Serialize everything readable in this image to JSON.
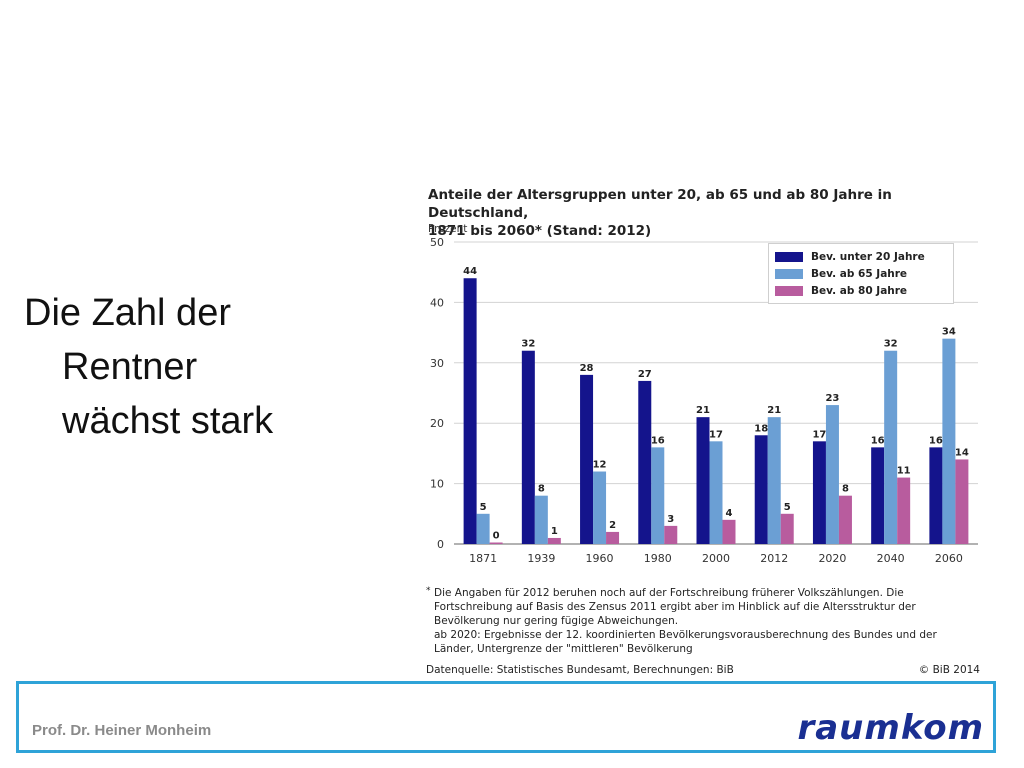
{
  "slide": {
    "line1": "Die Zahl der",
    "line2": "Rentner",
    "line3": "wächst stark"
  },
  "footer": {
    "author": "Prof. Dr. Heiner Monheim",
    "logo": "raumkom"
  },
  "figure": {
    "title_line1": "Anteile der Altersgruppen unter 20, ab 65 und ab 80 Jahre in Deutschland,",
    "title_line2": "1871 bis 2060* (Stand: 2012)",
    "unit_label": "Prozent",
    "footnote_marker": "*",
    "footnote_lines": [
      "Die Angaben für 2012 beruhen noch auf der Fortschreibung früherer Volkszählungen. Die",
      "Fortschreibung auf Basis des Zensus 2011 ergibt aber im Hinblick auf die Altersstruktur der",
      "Bevölkerung nur gering fügige Abweichungen.",
      "ab 2020: Ergebnisse der 12. koordinierten Bevölkerungsvorausberechnung des Bundes und der",
      "Länder, Untergrenze der \"mittleren\" Bevölkerung"
    ],
    "source": "Datenquelle: Statistisches Bundesamt, Berechnungen: BiB",
    "copyright": "© BiB 2014"
  },
  "chart_data": {
    "type": "bar",
    "title": "Anteile der Altersgruppen unter 20, ab 65 und ab 80 Jahre in Deutschland, 1871 bis 2060* (Stand: 2012)",
    "ylabel": "Prozent",
    "categories": [
      "1871",
      "1939",
      "1960",
      "1980",
      "2000",
      "2012",
      "2020",
      "2040",
      "2060"
    ],
    "ylim": [
      0,
      50
    ],
    "yticks": [
      0,
      10,
      20,
      30,
      40,
      50
    ],
    "grid": true,
    "legend_position": "top-right",
    "series": [
      {
        "name": "Bev. unter 20 Jahre",
        "color": "#14148c",
        "values": [
          44,
          32,
          28,
          27,
          21,
          18,
          17,
          16,
          16
        ]
      },
      {
        "name": "Bev. ab 65 Jahre",
        "color": "#6b9fd4",
        "values": [
          5,
          8,
          12,
          16,
          17,
          21,
          23,
          32,
          34
        ]
      },
      {
        "name": "Bev. ab 80 Jahre",
        "color": "#b85c9e",
        "values": [
          0,
          1,
          2,
          3,
          4,
          5,
          8,
          11,
          14
        ]
      }
    ]
  }
}
